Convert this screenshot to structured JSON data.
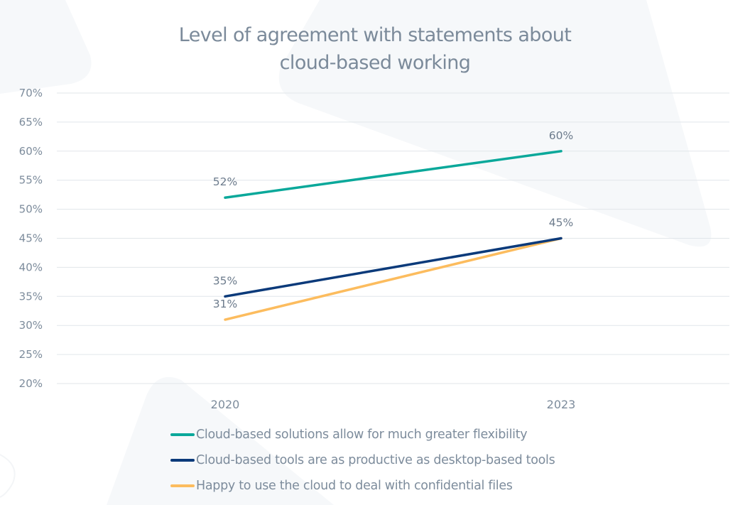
{
  "chart_data": {
    "type": "line",
    "title": "Level of agreement with statements about cloud-based working",
    "title_lines": [
      "Level of agreement with statements about",
      "cloud-based working"
    ],
    "xlabel": "",
    "ylabel": "",
    "categories": [
      "2020",
      "2023"
    ],
    "ylim": [
      20,
      70
    ],
    "yticks": [
      70,
      65,
      60,
      55,
      50,
      45,
      40,
      35,
      30,
      25,
      20
    ],
    "ytick_labels": [
      "70%",
      "65%",
      "60%",
      "55%",
      "50%",
      "45%",
      "40%",
      "35%",
      "30%",
      "25%",
      "20%"
    ],
    "grid": true,
    "legend_position": "bottom",
    "series": [
      {
        "name": "Cloud-based solutions allow for much greater flexibility",
        "values": [
          52,
          60
        ],
        "labels": [
          "52%",
          "60%"
        ],
        "color": "#0aa89a"
      },
      {
        "name": "Cloud-based tools are as productive as desktop-based tools",
        "values": [
          35,
          45
        ],
        "labels": [
          "35%",
          "45%"
        ],
        "color": "#0b3a7a"
      },
      {
        "name": "Happy to use the cloud to deal with confidential files",
        "values": [
          31,
          45
        ],
        "labels": [
          "31%",
          "45%"
        ],
        "color": "#fcbc5e"
      }
    ]
  },
  "colors": {
    "text": "#7d8c9c",
    "grid": "#e1e6ea",
    "background_shape": "#f6f8fa"
  }
}
